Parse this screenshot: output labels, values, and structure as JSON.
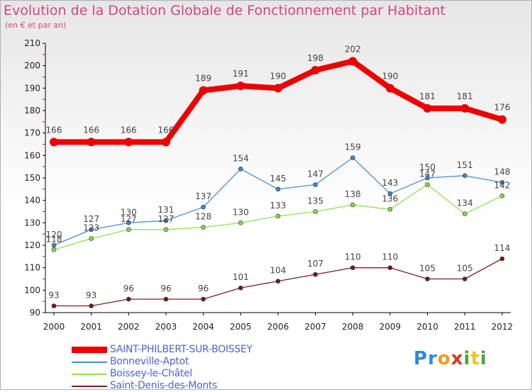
{
  "header": {
    "title": "Evolution de la Dotation Globale de Fonctionnement par Habitant",
    "subtitle": "(en € et par an)"
  },
  "logo": {
    "text": "Proxiti",
    "letters": [
      "P",
      "r",
      "o",
      "x",
      "i",
      "t",
      "i"
    ],
    "colors": [
      "#2e8bd6",
      "#2e8bd6",
      "#f29a1f",
      "#d63a2a",
      "#4aa83a",
      "#f2c21f",
      "#4aa83a"
    ]
  },
  "chart_data": {
    "type": "line",
    "title": "Evolution de la Dotation Globale de Fonctionnement par Habitant",
    "subtitle": "(en € et par an)",
    "x": [
      "2000",
      "2001",
      "2002",
      "2003",
      "2004",
      "2005",
      "2006",
      "2007",
      "2008",
      "2009",
      "2010",
      "2011",
      "2012"
    ],
    "ylim": [
      90,
      210
    ],
    "yticks": [
      90,
      100,
      110,
      120,
      130,
      140,
      150,
      160,
      170,
      180,
      190,
      200,
      210
    ],
    "grid": false,
    "legend_position": "bottom-left",
    "series": [
      {
        "name": "SAINT-PHILBERT-SUR-BOISSEY",
        "color": "#ee0000",
        "values": [
          166,
          166,
          166,
          166,
          189,
          191,
          190,
          198,
          202,
          190,
          181,
          181,
          176
        ]
      },
      {
        "name": "Bonneville-Aptot",
        "color": "#4a90d0",
        "values": [
          120,
          127,
          130,
          131,
          137,
          154,
          145,
          147,
          159,
          143,
          150,
          151,
          148
        ]
      },
      {
        "name": "Boissey-le-Châtel",
        "color": "#90e050",
        "values": [
          118,
          123,
          127,
          127,
          128,
          130,
          133,
          135,
          138,
          136,
          147,
          134,
          142
        ]
      },
      {
        "name": "Saint-Denis-des-Monts",
        "color": "#7a2020",
        "values": [
          93,
          93,
          96,
          96,
          96,
          101,
          104,
          107,
          110,
          110,
          105,
          105,
          114
        ]
      }
    ]
  }
}
